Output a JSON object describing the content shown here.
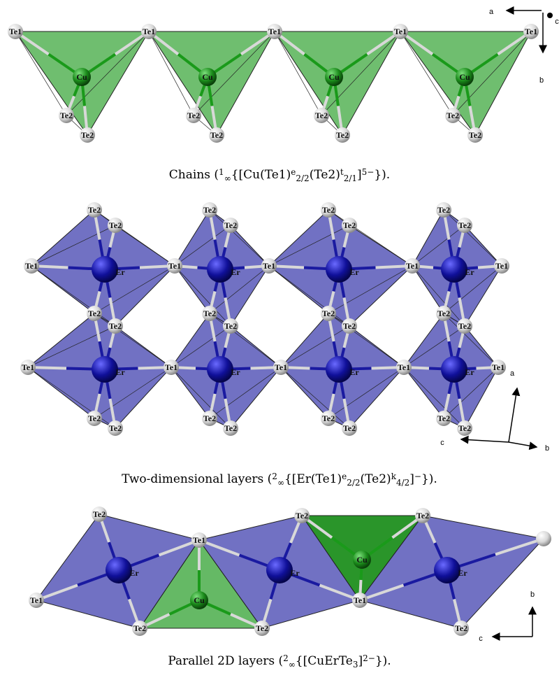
{
  "atom_labels": {
    "te1": "Te1",
    "te2": "Te2",
    "cu": "Cu",
    "er": "Er"
  },
  "axis_labels": {
    "a": "a",
    "b": "b",
    "c": "c"
  },
  "captions": [
    [
      {
        "text": "Chains (",
        "style": "normal"
      },
      {
        "text": "1",
        "style": "sup"
      },
      {
        "text": "∞",
        "style": "sub"
      },
      {
        "text": "{[Cu(Te1)",
        "style": "normal"
      },
      {
        "text": "e",
        "style": "sup"
      },
      {
        "text": "2/2",
        "style": "sub"
      },
      {
        "text": "(Te2)",
        "style": "normal"
      },
      {
        "text": "t",
        "style": "sup"
      },
      {
        "text": "2/1",
        "style": "sub"
      },
      {
        "text": "]",
        "style": "normal"
      },
      {
        "text": "5−",
        "style": "sup"
      },
      {
        "text": "}).",
        "style": "normal"
      }
    ],
    [
      {
        "text": "Two-dimensional layers (",
        "style": "normal"
      },
      {
        "text": "2",
        "style": "sup"
      },
      {
        "text": "∞",
        "style": "sub"
      },
      {
        "text": "{[Er(Te1)",
        "style": "normal"
      },
      {
        "text": "e",
        "style": "sup"
      },
      {
        "text": "2/2",
        "style": "sub"
      },
      {
        "text": "(Te2)",
        "style": "normal"
      },
      {
        "text": "k",
        "style": "sup"
      },
      {
        "text": "4/2",
        "style": "sub"
      },
      {
        "text": "]",
        "style": "normal"
      },
      {
        "text": "−",
        "style": "sup"
      },
      {
        "text": "}).",
        "style": "normal"
      }
    ],
    [
      {
        "text": "Parallel 2D layers (",
        "style": "normal"
      },
      {
        "text": "2",
        "style": "sup"
      },
      {
        "text": "∞",
        "style": "sub"
      },
      {
        "text": "{[CuErTe",
        "style": "normal"
      },
      {
        "text": "3",
        "style": "sub"
      },
      {
        "text": "]",
        "style": "normal"
      },
      {
        "text": "2−",
        "style": "sup"
      },
      {
        "text": "}).",
        "style": "normal"
      }
    ]
  ]
}
